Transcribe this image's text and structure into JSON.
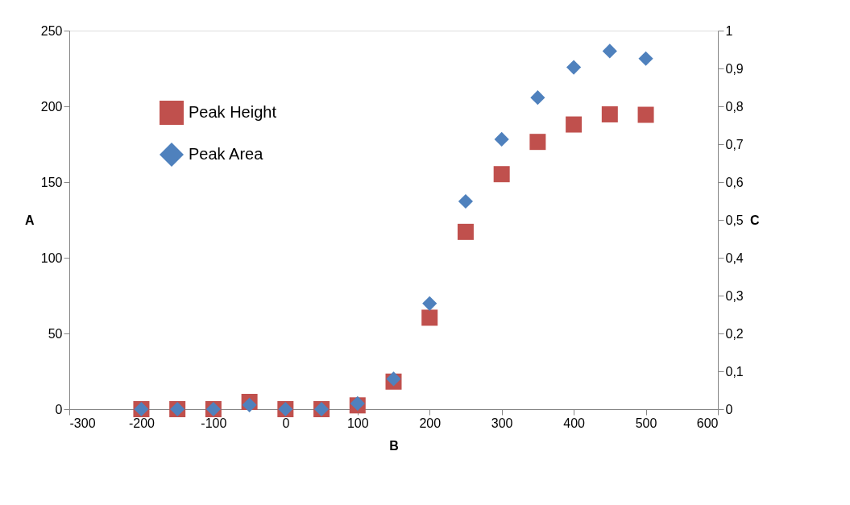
{
  "chart_data": {
    "type": "scatter",
    "xlabel": "B",
    "ylabel": "A",
    "y2label": "C",
    "x": [
      -200,
      -150,
      -100,
      -50,
      0,
      50,
      100,
      150,
      200,
      250,
      300,
      350,
      400,
      450,
      500
    ],
    "series": [
      {
        "name": "Peak Height",
        "color": "#c0504d",
        "marker": "square",
        "values": [
          0,
          0,
          0,
          4.8,
          0,
          0,
          2.5,
          18.2,
          60.4,
          117.1,
          155.2,
          176.5,
          188.0,
          194.7,
          194.4
        ]
      },
      {
        "name": "Peak Area",
        "color": "#4f81bd",
        "marker": "diamond",
        "axis": "y2",
        "values": [
          0,
          0,
          0,
          0.011,
          0,
          0,
          0.015,
          0.08,
          0.279,
          0.549,
          0.713,
          0.823,
          0.903,
          0.946,
          0.926
        ]
      }
    ],
    "xlim": [
      -300,
      600
    ],
    "xticks": [
      -300,
      -200,
      -100,
      0,
      100,
      200,
      300,
      400,
      500,
      600
    ],
    "ylim": [
      0,
      250
    ],
    "yticks": [
      0,
      50,
      100,
      150,
      200,
      250
    ],
    "y2lim": [
      0,
      1
    ],
    "y2ticks": [
      {
        "value": 0,
        "label": "0"
      },
      {
        "value": 0.1,
        "label": "0,1"
      },
      {
        "value": 0.2,
        "label": "0,2"
      },
      {
        "value": 0.3,
        "label": "0,3"
      },
      {
        "value": 0.4,
        "label": "0,4"
      },
      {
        "value": 0.5,
        "label": "0,5"
      },
      {
        "value": 0.6,
        "label": "0,6"
      },
      {
        "value": 0.7,
        "label": "0,7"
      },
      {
        "value": 0.8,
        "label": "0,8"
      },
      {
        "value": 0.9,
        "label": "0,9"
      },
      {
        "value": 1,
        "label": "1"
      }
    ],
    "grid": false,
    "legend": "top left"
  }
}
